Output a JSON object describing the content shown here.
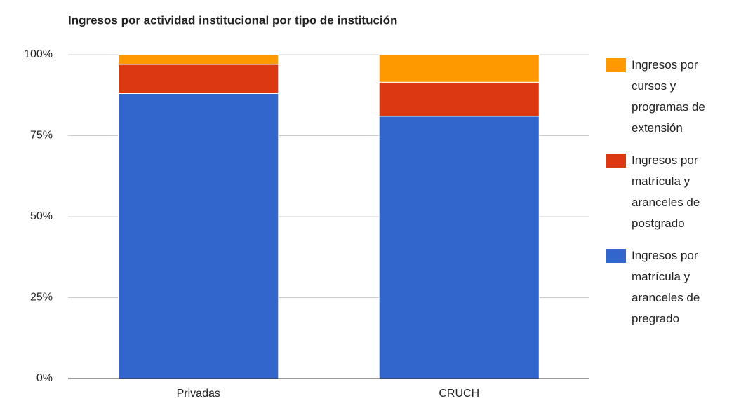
{
  "chart_data": {
    "type": "stacked_bar",
    "title": "Ingresos por actividad institucional por tipo de institución",
    "categories": [
      "Privadas",
      "CRUCH"
    ],
    "series": [
      {
        "name": "Ingresos por matrícula y aranceles de pregrado",
        "color": "#3366cc",
        "values": [
          88,
          81
        ]
      },
      {
        "name": "Ingresos por matrícula y aranceles de postgrado",
        "color": "#dc3912",
        "values": [
          9,
          10.5
        ]
      },
      {
        "name": "Ingresos por cursos y programas de extensión",
        "color": "#ff9900",
        "values": [
          3,
          8.5
        ]
      }
    ],
    "ylim": [
      0,
      100
    ],
    "yticks": [
      {
        "value": 0,
        "label": "0%"
      },
      {
        "value": 25,
        "label": "25%"
      },
      {
        "value": 50,
        "label": "50%"
      },
      {
        "value": 75,
        "label": "75%"
      },
      {
        "value": 100,
        "label": "100%"
      }
    ],
    "grid": true,
    "legend": "right"
  }
}
